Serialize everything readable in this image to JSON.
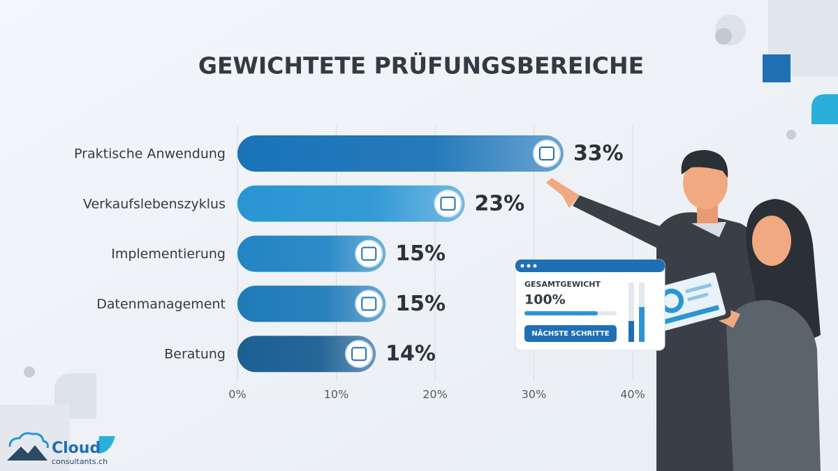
{
  "chart_data": {
    "type": "hbar",
    "title": "GEWICHTETE PRÜFUNGSBEREICHE",
    "categories": [
      "Praktische Anwendung",
      "Verkaufslebenszyklus",
      "Implementierung",
      "Datenmanagement",
      "Beratung"
    ],
    "values": [
      33,
      23,
      15,
      15,
      14
    ],
    "value_labels": [
      "33%",
      "23%",
      "15%",
      "15%",
      "14%"
    ],
    "colors": [
      "#1a73b8",
      "#2a95d4",
      "#2385c4",
      "#1f7bb8",
      "#1b5f93"
    ],
    "xlim": [
      0,
      40
    ],
    "xticks": [
      {
        "value": 0,
        "label": "0%"
      },
      {
        "value": 10,
        "label": "10%"
      },
      {
        "value": 20,
        "label": "20%"
      },
      {
        "value": 30,
        "label": "30%"
      },
      {
        "value": 40,
        "label": "40%"
      }
    ],
    "grid": true
  },
  "dashboard_card": {
    "label": "GESAMTGEWICHT",
    "value": "100%",
    "button": "NÄCHSTE SCHRITTE"
  },
  "logo": {
    "name": "Cloud",
    "domain": "consultants.ch"
  }
}
